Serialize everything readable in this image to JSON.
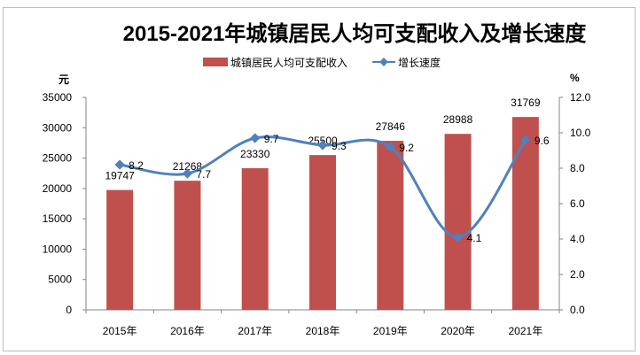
{
  "chart_data": {
    "type": "bar+line",
    "title": "2015-2021年城镇居民人均可支配收入及增长速度",
    "categories": [
      "2015年",
      "2016年",
      "2017年",
      "2018年",
      "2019年",
      "2020年",
      "2021年"
    ],
    "series": [
      {
        "name": "城镇居民人均可支配收入",
        "type": "bar",
        "axis": "left",
        "color": "#C0504D",
        "values": [
          19747,
          21268,
          23330,
          25500,
          27846,
          28988,
          31769
        ]
      },
      {
        "name": "增长速度",
        "type": "line",
        "axis": "right",
        "color": "#4F81BD",
        "smooth": true,
        "values": [
          8.2,
          7.7,
          9.7,
          9.3,
          9.2,
          4.1,
          9.6
        ]
      }
    ],
    "left_axis": {
      "unit": "元",
      "ylim": [
        0,
        35000
      ],
      "ticks": [
        "0",
        "5000",
        "10000",
        "15000",
        "20000",
        "25000",
        "30000",
        "35000"
      ]
    },
    "right_axis": {
      "unit": "%",
      "ylim": [
        0,
        12
      ],
      "ticks": [
        "0.0",
        "2.0",
        "4.0",
        "6.0",
        "8.0",
        "10.0",
        "12.0"
      ]
    },
    "legend": "top",
    "grid": false
  }
}
